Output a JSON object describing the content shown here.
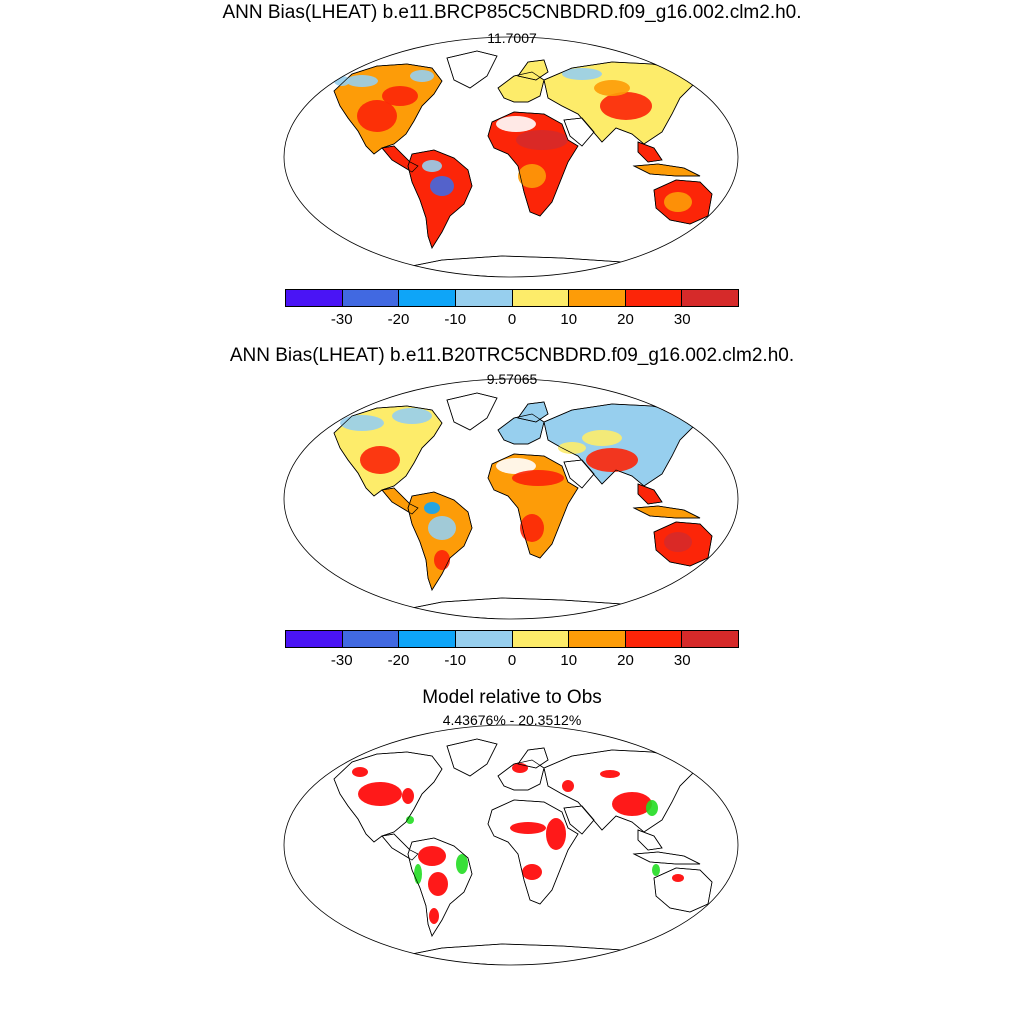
{
  "panels": [
    {
      "title": "ANN Bias(LHEAT) b.e11.BRCP85C5CNBDRD.f09_g16.002.clm2.h0.",
      "subtitle": "11.7007",
      "type": "bias",
      "variant": "rcp85"
    },
    {
      "title": "ANN Bias(LHEAT) b.e11.B20TRC5CNBDRD.f09_g16.002.clm2.h0.",
      "subtitle": "9.57065",
      "type": "bias",
      "variant": "20tr"
    },
    {
      "title": "Model relative to Obs",
      "subtitle": "4.43676% - 20.3512%",
      "type": "relative"
    }
  ],
  "colorbar": {
    "colors": [
      "#4a14f5",
      "#4169e1",
      "#0ea5f8",
      "#97cfee",
      "#fdec6a",
      "#fd9c08",
      "#fc2508",
      "#d62a2a"
    ],
    "tick_labels": [
      "-30",
      "-20",
      "-10",
      "0",
      "10",
      "20",
      "30"
    ]
  },
  "relative_colors": {
    "model_exceeds": "#ff0000",
    "model_within": "#22dd22"
  }
}
